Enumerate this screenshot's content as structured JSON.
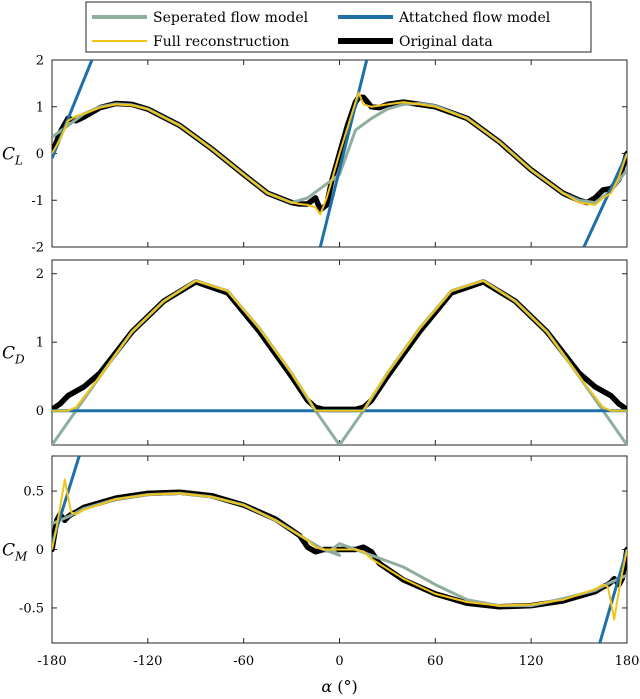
{
  "chart_data": {
    "type": "line",
    "xlabel_symbol": "α",
    "xlabel_unit": "(°)",
    "xlim": [
      -180,
      180
    ],
    "xticks": [
      -180,
      -120,
      -60,
      0,
      60,
      120,
      180
    ],
    "legend": {
      "placement": "top",
      "entries": [
        {
          "label": "Seperated flow model",
          "color": "#8fae9e"
        },
        {
          "label": "Attatched flow model",
          "color": "#1f6fa8"
        },
        {
          "label": "Full reconstruction",
          "color": "#f0c419"
        },
        {
          "label": "Original data",
          "color": "#000000"
        }
      ]
    },
    "colors": {
      "separated": "#8fae9e",
      "attached": "#1f6fa8",
      "full": "#f0c419",
      "original": "#000000"
    },
    "panels": [
      {
        "ylabel": "C",
        "ylabel_sub": "L",
        "ylim": [
          -2,
          2
        ],
        "yticks": [
          -2,
          -1,
          0,
          1,
          2
        ],
        "series": {
          "separated": {
            "x": [
              -180,
              -170,
              -160,
              -150,
              -140,
              -130,
              -120,
              -100,
              -80,
              -60,
              -45,
              -30,
              -20,
              -10,
              0,
              10,
              20,
              30,
              40,
              50,
              60,
              80,
              100,
              120,
              140,
              150,
              160,
              170,
              180
            ],
            "y": [
              0.35,
              0.6,
              0.85,
              1.0,
              1.06,
              1.04,
              0.95,
              0.6,
              0.1,
              -0.45,
              -0.85,
              -1.05,
              -0.95,
              -0.7,
              -0.45,
              0.5,
              0.75,
              0.95,
              1.05,
              1.07,
              1.02,
              0.75,
              0.25,
              -0.35,
              -0.85,
              -1.0,
              -1.05,
              -0.8,
              -0.35
            ]
          },
          "attached": [
            {
              "x": [
                -180,
                -155
              ],
              "y": [
                -0.1,
                2.0
              ]
            },
            {
              "x": [
                -12,
                17
              ],
              "y": [
                -2.0,
                2.0
              ]
            },
            {
              "x": [
                153,
                180
              ],
              "y": [
                -2.0,
                0.0
              ]
            }
          ],
          "full": {
            "x": [
              -180,
              -175,
              -170,
              -165,
              -160,
              -150,
              -140,
              -130,
              -120,
              -100,
              -80,
              -60,
              -45,
              -30,
              -25,
              -20,
              -15,
              -12,
              -8,
              -5,
              0,
              5,
              10,
              12,
              15,
              20,
              30,
              40,
              50,
              60,
              80,
              100,
              120,
              140,
              150,
              160,
              165,
              170,
              175,
              180
            ],
            "y": [
              0.0,
              0.3,
              0.7,
              0.8,
              0.85,
              0.98,
              1.05,
              1.03,
              0.95,
              0.6,
              0.1,
              -0.45,
              -0.85,
              -1.05,
              -1.08,
              -1.1,
              -1.15,
              -1.3,
              -0.95,
              -0.6,
              0.0,
              0.55,
              1.1,
              1.3,
              1.05,
              1.0,
              1.05,
              1.1,
              1.05,
              1.0,
              0.75,
              0.25,
              -0.35,
              -0.85,
              -1.05,
              -1.1,
              -0.95,
              -0.85,
              -0.5,
              0.0
            ]
          },
          "original": {
            "x": [
              -180,
              -175,
              -170,
              -165,
              -160,
              -155,
              -150,
              -140,
              -130,
              -120,
              -100,
              -80,
              -60,
              -45,
              -30,
              -25,
              -20,
              -15,
              -12,
              -8,
              -5,
              0,
              5,
              10,
              12,
              15,
              20,
              25,
              30,
              40,
              50,
              60,
              80,
              100,
              120,
              140,
              150,
              155,
              160,
              165,
              170,
              175,
              180
            ],
            "y": [
              0.0,
              0.45,
              0.75,
              0.7,
              0.78,
              0.88,
              0.98,
              1.07,
              1.05,
              0.95,
              0.6,
              0.1,
              -0.45,
              -0.85,
              -1.05,
              -1.08,
              -1.08,
              -0.95,
              -1.2,
              -1.1,
              -0.6,
              0.0,
              0.6,
              1.1,
              1.2,
              1.2,
              1.0,
              0.98,
              1.05,
              1.1,
              1.05,
              1.0,
              0.75,
              0.25,
              -0.35,
              -0.85,
              -1.0,
              -1.05,
              -0.95,
              -0.78,
              -0.75,
              -0.55,
              0.0
            ]
          }
        }
      },
      {
        "ylabel": "C",
        "ylabel_sub": "D",
        "ylim": [
          -0.5,
          2.2
        ],
        "yticks": [
          0,
          1,
          2
        ],
        "series": {
          "separated": {
            "x": [
              -180,
              -165,
              -150,
              -130,
              -110,
              -90,
              -70,
              -50,
              -30,
              -15,
              0,
              15,
              30,
              50,
              70,
              90,
              110,
              130,
              150,
              165,
              180
            ],
            "y": [
              -0.5,
              0.0,
              0.5,
              1.15,
              1.6,
              1.9,
              1.75,
              1.2,
              0.55,
              0.0,
              -0.5,
              0.0,
              0.55,
              1.2,
              1.75,
              1.9,
              1.6,
              1.15,
              0.5,
              0.0,
              -0.5
            ]
          },
          "attached": [
            {
              "x": [
                -180,
                180
              ],
              "y": [
                0.0,
                0.0
              ]
            }
          ],
          "full": {
            "x": [
              -180,
              -170,
              -165,
              -150,
              -130,
              -110,
              -90,
              -70,
              -50,
              -30,
              -20,
              -15,
              -10,
              0,
              10,
              15,
              20,
              30,
              50,
              70,
              90,
              110,
              130,
              150,
              165,
              170,
              180
            ],
            "y": [
              0.0,
              0.0,
              0.05,
              0.5,
              1.15,
              1.6,
              1.9,
              1.75,
              1.2,
              0.55,
              0.2,
              0.0,
              0.0,
              0.0,
              0.0,
              0.0,
              0.2,
              0.55,
              1.2,
              1.75,
              1.9,
              1.6,
              1.15,
              0.5,
              0.05,
              0.0,
              0.0
            ]
          },
          "original": {
            "x": [
              -180,
              -175,
              -170,
              -160,
              -150,
              -130,
              -110,
              -90,
              -70,
              -50,
              -30,
              -20,
              -15,
              -10,
              0,
              10,
              15,
              20,
              30,
              50,
              70,
              90,
              110,
              130,
              150,
              160,
              170,
              175,
              180
            ],
            "y": [
              0.02,
              0.1,
              0.22,
              0.35,
              0.55,
              1.15,
              1.6,
              1.88,
              1.72,
              1.15,
              0.5,
              0.15,
              0.05,
              0.02,
              0.02,
              0.02,
              0.05,
              0.15,
              0.5,
              1.15,
              1.72,
              1.88,
              1.6,
              1.15,
              0.55,
              0.35,
              0.22,
              0.1,
              0.02
            ]
          }
        }
      },
      {
        "ylabel": "C",
        "ylabel_sub": "M",
        "ylim": [
          -0.8,
          0.8
        ],
        "yticks": [
          -0.5,
          0,
          0.5
        ],
        "series": {
          "separated": {
            "x": [
              -180,
              -170,
              -160,
              -140,
              -120,
              -100,
              -80,
              -60,
              -40,
              -20,
              -10,
              0,
              -5,
              0,
              10,
              20,
              40,
              60,
              80,
              100,
              120,
              140,
              160,
              170,
              180
            ],
            "y": [
              0.22,
              0.28,
              0.35,
              0.43,
              0.47,
              0.48,
              0.45,
              0.38,
              0.25,
              0.08,
              0.0,
              -0.05,
              0.0,
              0.05,
              0.0,
              -0.05,
              -0.15,
              -0.3,
              -0.43,
              -0.48,
              -0.48,
              -0.42,
              -0.35,
              -0.28,
              -0.22
            ]
          },
          "attached": [
            {
              "x": [
                -180,
                -163
              ],
              "y": [
                0.05,
                0.8
              ]
            },
            {
              "x": [
                163,
                180
              ],
              "y": [
                -0.8,
                0.0
              ]
            }
          ],
          "full": {
            "x": [
              -180,
              -177,
              -175,
              -172,
              -170,
              -168,
              -165,
              -160,
              -140,
              -120,
              -100,
              -80,
              -60,
              -40,
              -20,
              -15,
              -10,
              0,
              10,
              15,
              20,
              40,
              60,
              80,
              100,
              120,
              140,
              160,
              165,
              168,
              170,
              172,
              175,
              177,
              180
            ],
            "y": [
              0.0,
              0.2,
              0.35,
              0.6,
              0.45,
              0.32,
              0.3,
              0.34,
              0.43,
              0.47,
              0.48,
              0.45,
              0.38,
              0.25,
              0.08,
              0.02,
              0.0,
              0.0,
              0.0,
              -0.02,
              -0.08,
              -0.25,
              -0.38,
              -0.45,
              -0.48,
              -0.47,
              -0.43,
              -0.34,
              -0.3,
              -0.32,
              -0.45,
              -0.6,
              -0.35,
              -0.2,
              0.0
            ]
          },
          "original": {
            "x": [
              -180,
              -177,
              -175,
              -172,
              -170,
              -168,
              -165,
              -160,
              -140,
              -120,
              -100,
              -80,
              -60,
              -40,
              -25,
              -20,
              -15,
              -10,
              0,
              10,
              15,
              20,
              25,
              40,
              60,
              80,
              100,
              120,
              140,
              160,
              165,
              168,
              170,
              172,
              175,
              177,
              180
            ],
            "y": [
              0.0,
              0.25,
              0.3,
              0.25,
              0.28,
              0.3,
              0.32,
              0.36,
              0.44,
              0.48,
              0.49,
              0.46,
              0.38,
              0.26,
              0.12,
              0.02,
              -0.02,
              0.0,
              0.0,
              0.0,
              0.02,
              -0.02,
              -0.12,
              -0.26,
              -0.38,
              -0.46,
              -0.49,
              -0.48,
              -0.44,
              -0.36,
              -0.32,
              -0.3,
              -0.28,
              -0.25,
              -0.3,
              -0.25,
              0.0
            ]
          }
        }
      }
    ]
  }
}
